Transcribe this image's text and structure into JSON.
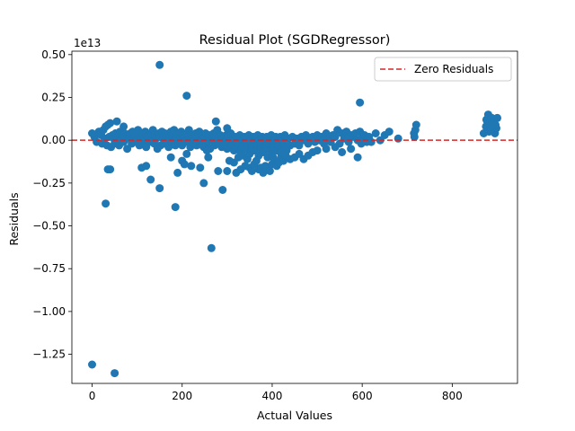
{
  "chart_data": {
    "type": "scatter",
    "title": "Residual Plot (SGDRegressor)",
    "xlabel": "Actual Values",
    "ylabel": "Residuals",
    "y_offset_label": "1e13",
    "xlim": [
      -45,
      945
    ],
    "ylim": [
      -1.42,
      0.52
    ],
    "xticks": [
      0,
      200,
      400,
      600,
      800
    ],
    "yticks": [
      0.5,
      0.25,
      0.0,
      -0.25,
      -0.5,
      -0.75,
      -1.0,
      -1.25
    ],
    "x_tick_labels": [
      "0",
      "200",
      "400",
      "600",
      "800"
    ],
    "y_tick_labels": [
      "0.50",
      "0.25",
      "0.00",
      "−0.25",
      "−0.50",
      "−0.75",
      "−1.00",
      "−1.25"
    ],
    "reference_line": {
      "y": 0,
      "style": "dashed",
      "color": "#d62728",
      "name": "Zero Residuals"
    },
    "legend": {
      "position": "top-right",
      "entries": [
        "Zero Residuals"
      ]
    },
    "grid": false,
    "marker_color": "#1f77b4",
    "points": [
      [
        0,
        0.04
      ],
      [
        5,
        0.02
      ],
      [
        10,
        -0.01
      ],
      [
        15,
        0.05
      ],
      [
        20,
        0.03
      ],
      [
        22,
        -0.02
      ],
      [
        25,
        0.06
      ],
      [
        28,
        0.01
      ],
      [
        30,
        0.08
      ],
      [
        33,
        -0.03
      ],
      [
        35,
        0.09
      ],
      [
        38,
        0.02
      ],
      [
        40,
        0.1
      ],
      [
        42,
        -0.04
      ],
      [
        45,
        0.03
      ],
      [
        48,
        0.01
      ],
      [
        50,
        -0.02
      ],
      [
        52,
        0.04
      ],
      [
        55,
        0.11
      ],
      [
        58,
        0.02
      ],
      [
        60,
        -0.03
      ],
      [
        62,
        0.05
      ],
      [
        65,
        0.0
      ],
      [
        68,
        0.03
      ],
      [
        70,
        -0.01
      ],
      [
        72,
        0.04
      ],
      [
        75,
        0.02
      ],
      [
        78,
        -0.05
      ],
      [
        80,
        0.03
      ],
      [
        82,
        0.01
      ],
      [
        85,
        0.04
      ],
      [
        88,
        -0.02
      ],
      [
        90,
        0.05
      ],
      [
        92,
        0.02
      ],
      [
        95,
        -0.01
      ],
      [
        98,
        0.03
      ],
      [
        100,
        0.0
      ],
      [
        102,
        0.06
      ],
      [
        105,
        -0.03
      ],
      [
        108,
        0.02
      ],
      [
        110,
        0.04
      ],
      [
        112,
        -0.02
      ],
      [
        115,
        0.01
      ],
      [
        118,
        0.05
      ],
      [
        120,
        -0.04
      ],
      [
        122,
        0.02
      ],
      [
        125,
        0.03
      ],
      [
        128,
        -0.01
      ],
      [
        130,
        0.04
      ],
      [
        132,
        0.0
      ],
      [
        135,
        0.06
      ],
      [
        138,
        -0.02
      ],
      [
        140,
        0.03
      ],
      [
        142,
        0.01
      ],
      [
        145,
        -0.05
      ],
      [
        148,
        0.04
      ],
      [
        150,
        0.02
      ],
      [
        152,
        -0.03
      ],
      [
        155,
        0.05
      ],
      [
        158,
        0.01
      ],
      [
        160,
        -0.02
      ],
      [
        162,
        0.04
      ],
      [
        165,
        0.0
      ],
      [
        168,
        0.03
      ],
      [
        170,
        -0.04
      ],
      [
        172,
        0.02
      ],
      [
        175,
        0.05
      ],
      [
        178,
        -0.01
      ],
      [
        180,
        0.03
      ],
      [
        182,
        0.06
      ],
      [
        185,
        -0.03
      ],
      [
        188,
        0.02
      ],
      [
        190,
        0.04
      ],
      [
        192,
        -0.02
      ],
      [
        195,
        0.01
      ],
      [
        198,
        0.05
      ],
      [
        200,
        -0.03
      ],
      [
        202,
        0.03
      ],
      [
        205,
        0.02
      ],
      [
        208,
        -0.01
      ],
      [
        210,
        0.04
      ],
      [
        212,
        0.0
      ],
      [
        215,
        0.06
      ],
      [
        218,
        -0.04
      ],
      [
        220,
        0.02
      ],
      [
        222,
        0.03
      ],
      [
        225,
        -0.02
      ],
      [
        228,
        0.01
      ],
      [
        230,
        0.04
      ],
      [
        232,
        -0.03
      ],
      [
        235,
        0.02
      ],
      [
        238,
        0.05
      ],
      [
        240,
        -0.01
      ],
      [
        242,
        0.03
      ],
      [
        245,
        0.0
      ],
      [
        248,
        -0.04
      ],
      [
        250,
        0.02
      ],
      [
        252,
        0.04
      ],
      [
        255,
        -0.02
      ],
      [
        258,
        0.01
      ],
      [
        260,
        0.03
      ],
      [
        262,
        -0.05
      ],
      [
        265,
        0.02
      ],
      [
        268,
        0.0
      ],
      [
        270,
        0.04
      ],
      [
        272,
        -0.03
      ],
      [
        275,
        0.02
      ],
      [
        278,
        0.06
      ],
      [
        280,
        -0.02
      ],
      [
        282,
        0.01
      ],
      [
        285,
        0.03
      ],
      [
        288,
        -0.04
      ],
      [
        290,
        0.02
      ],
      [
        292,
        0.0
      ],
      [
        295,
        -0.03
      ],
      [
        298,
        0.03
      ],
      [
        300,
        -0.05
      ],
      [
        302,
        0.02
      ],
      [
        305,
        -0.01
      ],
      [
        308,
        0.04
      ],
      [
        310,
        -0.03
      ],
      [
        312,
        0.01
      ],
      [
        315,
        -0.06
      ],
      [
        318,
        0.02
      ],
      [
        320,
        -0.04
      ],
      [
        322,
        0.0
      ],
      [
        325,
        -0.02
      ],
      [
        328,
        0.03
      ],
      [
        330,
        -0.07
      ],
      [
        332,
        0.01
      ],
      [
        335,
        -0.03
      ],
      [
        338,
        0.02
      ],
      [
        340,
        -0.05
      ],
      [
        342,
        0.0
      ],
      [
        345,
        -0.02
      ],
      [
        348,
        0.03
      ],
      [
        350,
        -0.08
      ],
      [
        352,
        -0.01
      ],
      [
        355,
        -0.04
      ],
      [
        358,
        0.02
      ],
      [
        360,
        -0.06
      ],
      [
        362,
        0.0
      ],
      [
        365,
        -0.03
      ],
      [
        368,
        0.03
      ],
      [
        370,
        -0.09
      ],
      [
        372,
        -0.01
      ],
      [
        375,
        -0.05
      ],
      [
        378,
        0.02
      ],
      [
        380,
        -0.07
      ],
      [
        382,
        0.01
      ],
      [
        385,
        -0.03
      ],
      [
        388,
        0.02
      ],
      [
        390,
        -0.1
      ],
      [
        392,
        -0.02
      ],
      [
        395,
        -0.06
      ],
      [
        398,
        0.03
      ],
      [
        400,
        -0.08
      ],
      [
        402,
        0.0
      ],
      [
        405,
        -0.04
      ],
      [
        408,
        0.02
      ],
      [
        410,
        -0.06
      ],
      [
        412,
        -0.01
      ],
      [
        415,
        -0.03
      ],
      [
        418,
        0.02
      ],
      [
        420,
        -0.05
      ],
      [
        422,
        0.0
      ],
      [
        425,
        -0.02
      ],
      [
        428,
        0.03
      ],
      [
        430,
        -0.04
      ],
      [
        435,
        0.01
      ],
      [
        440,
        -0.03
      ],
      [
        445,
        0.02
      ],
      [
        450,
        -0.02
      ],
      [
        455,
        0.01
      ],
      [
        460,
        -0.03
      ],
      [
        465,
        0.02
      ],
      [
        470,
        0.0
      ],
      [
        475,
        0.03
      ],
      [
        480,
        -0.02
      ],
      [
        485,
        0.01
      ],
      [
        490,
        0.02
      ],
      [
        495,
        -0.01
      ],
      [
        500,
        0.03
      ],
      [
        505,
        0.0
      ],
      [
        510,
        0.02
      ],
      [
        515,
        -0.02
      ],
      [
        520,
        0.04
      ],
      [
        525,
        0.01
      ],
      [
        530,
        -0.01
      ],
      [
        535,
        0.03
      ],
      [
        540,
        0.02
      ],
      [
        545,
        0.06
      ],
      [
        550,
        -0.02
      ],
      [
        555,
        0.04
      ],
      [
        560,
        0.01
      ],
      [
        565,
        0.05
      ],
      [
        570,
        -0.01
      ],
      [
        575,
        0.03
      ],
      [
        580,
        0.02
      ],
      [
        585,
        0.04
      ],
      [
        590,
        0.0
      ],
      [
        595,
        0.05
      ],
      [
        600,
        0.02
      ],
      [
        605,
        0.03
      ],
      [
        610,
        -0.01
      ],
      [
        615,
        0.02
      ],
      [
        630,
        0.04
      ],
      [
        650,
        0.03
      ],
      [
        660,
        0.05
      ],
      [
        680,
        0.01
      ],
      [
        715,
        0.04
      ],
      [
        718,
        0.06
      ],
      [
        720,
        0.09
      ],
      [
        716,
        0.02
      ],
      [
        150,
        0.44
      ],
      [
        210,
        0.26
      ],
      [
        595,
        0.22
      ],
      [
        275,
        0.11
      ],
      [
        300,
        0.07
      ],
      [
        70,
        0.08
      ],
      [
        35,
        -0.17
      ],
      [
        40,
        -0.17
      ],
      [
        30,
        -0.37
      ],
      [
        130,
        -0.23
      ],
      [
        150,
        -0.28
      ],
      [
        110,
        -0.16
      ],
      [
        120,
        -0.15
      ],
      [
        185,
        -0.39
      ],
      [
        175,
        -0.1
      ],
      [
        190,
        -0.19
      ],
      [
        200,
        -0.12
      ],
      [
        205,
        -0.14
      ],
      [
        210,
        -0.08
      ],
      [
        220,
        -0.15
      ],
      [
        240,
        -0.16
      ],
      [
        248,
        -0.25
      ],
      [
        265,
        -0.63
      ],
      [
        280,
        -0.18
      ],
      [
        290,
        -0.29
      ],
      [
        300,
        -0.18
      ],
      [
        305,
        -0.12
      ],
      [
        315,
        -0.13
      ],
      [
        320,
        -0.19
      ],
      [
        330,
        -0.17
      ],
      [
        340,
        -0.15
      ],
      [
        350,
        -0.16
      ],
      [
        355,
        -0.18
      ],
      [
        360,
        -0.14
      ],
      [
        370,
        -0.17
      ],
      [
        375,
        -0.16
      ],
      [
        380,
        -0.19
      ],
      [
        385,
        -0.15
      ],
      [
        390,
        -0.16
      ],
      [
        395,
        -0.18
      ],
      [
        400,
        -0.14
      ],
      [
        405,
        -0.12
      ],
      [
        410,
        -0.15
      ],
      [
        415,
        -0.13
      ],
      [
        420,
        -0.1
      ],
      [
        425,
        -0.12
      ],
      [
        430,
        -0.09
      ],
      [
        440,
        -0.11
      ],
      [
        450,
        -0.1
      ],
      [
        460,
        -0.08
      ],
      [
        470,
        -0.11
      ],
      [
        480,
        -0.09
      ],
      [
        490,
        -0.07
      ],
      [
        500,
        -0.06
      ],
      [
        520,
        -0.05
      ],
      [
        540,
        -0.04
      ],
      [
        555,
        -0.07
      ],
      [
        575,
        -0.05
      ],
      [
        590,
        -0.1
      ],
      [
        598,
        -0.02
      ],
      [
        620,
        -0.01
      ],
      [
        640,
        0.0
      ],
      [
        245,
        -0.03
      ],
      [
        255,
        -0.06
      ],
      [
        258,
        -0.1
      ],
      [
        325,
        -0.1
      ],
      [
        335,
        -0.09
      ],
      [
        345,
        -0.11
      ],
      [
        365,
        -0.12
      ],
      [
        402,
        -0.1
      ],
      [
        418,
        -0.07
      ],
      [
        432,
        -0.06
      ],
      [
        0,
        -1.31
      ],
      [
        50,
        -1.36
      ],
      [
        870,
        0.04
      ],
      [
        875,
        0.08
      ],
      [
        878,
        0.11
      ],
      [
        880,
        0.15
      ],
      [
        882,
        0.05
      ],
      [
        885,
        0.09
      ],
      [
        888,
        0.13
      ],
      [
        890,
        0.06
      ],
      [
        892,
        0.1
      ],
      [
        895,
        0.04
      ],
      [
        898,
        0.07
      ],
      [
        900,
        0.13
      ],
      [
        896,
        0.09
      ],
      [
        886,
        0.06
      ],
      [
        876,
        0.12
      ]
    ]
  }
}
